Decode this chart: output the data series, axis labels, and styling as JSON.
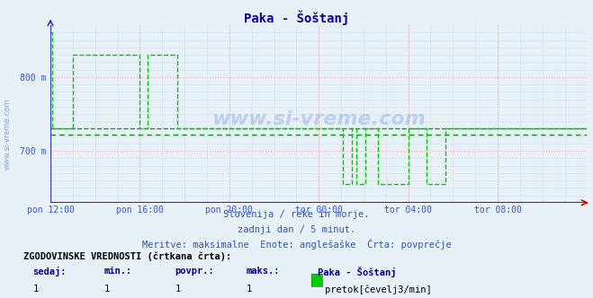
{
  "title": "Paka - Šoštanj",
  "bg_color": "#e8f0f8",
  "plot_bg_color": "#e8f0f8",
  "line_color": "#00cc00",
  "grid_color_major": "#ffaaaa",
  "grid_color_minor": "#ccddee",
  "axis_color_x": "#cc0000",
  "axis_color_y": "#3333cc",
  "ylim": [
    630,
    870
  ],
  "ytick_vals": [
    700,
    800
  ],
  "ytick_labels": [
    "700 m",
    "800 m"
  ],
  "xtick_labels": [
    "pon 12:00",
    "pon 16:00",
    "pon 20:00",
    "tor 00:00",
    "tor 04:00",
    "tor 08:00"
  ],
  "xtick_positions": [
    0,
    48,
    96,
    144,
    192,
    240
  ],
  "total_points": 289,
  "avg_line1": 731,
  "avg_line2": 722,
  "subtitle1": "Slovenija / reke in morje.",
  "subtitle2": "zadnji dan / 5 minut.",
  "subtitle3": "Meritve: maksimalne  Enote: anglešaške  Črta: povprečje",
  "footer_bold": "ZGODOVINSKE VREDNOSTI (črtkana črta):",
  "footer_col1": "sedaj:",
  "footer_col2": "min.:",
  "footer_col3": "povpr.:",
  "footer_col4": "maks.:",
  "footer_series": "Paka - Šoštanj",
  "footer_unit": "pretok[čevelj3/min]",
  "footer_val1": "1",
  "footer_val2": "1",
  "footer_val3": "1",
  "footer_val4": "1",
  "watermark": "www.si-vreme.com",
  "watermark_side": "www.si-vreme.com",
  "signal": [
    860,
    730,
    730,
    730,
    730,
    730,
    730,
    730,
    730,
    730,
    730,
    730,
    830,
    830,
    830,
    830,
    830,
    830,
    830,
    830,
    830,
    830,
    830,
    830,
    830,
    830,
    830,
    830,
    830,
    830,
    830,
    830,
    830,
    830,
    830,
    830,
    830,
    830,
    830,
    830,
    830,
    830,
    830,
    830,
    830,
    830,
    830,
    830,
    730,
    730,
    730,
    730,
    830,
    830,
    830,
    830,
    830,
    830,
    830,
    830,
    830,
    830,
    830,
    830,
    830,
    830,
    830,
    830,
    730,
    730,
    730,
    730,
    730,
    730,
    730,
    730,
    730,
    730,
    730,
    730,
    730,
    730,
    730,
    730,
    730,
    730,
    730,
    730,
    730,
    730,
    730,
    730,
    730,
    730,
    730,
    730,
    730,
    730,
    730,
    730,
    730,
    730,
    730,
    730,
    730,
    730,
    730,
    730,
    730,
    730,
    730,
    730,
    730,
    730,
    730,
    730,
    730,
    730,
    730,
    730,
    730,
    730,
    730,
    730,
    730,
    730,
    730,
    730,
    730,
    730,
    730,
    730,
    730,
    730,
    730,
    730,
    730,
    730,
    730,
    730,
    730,
    730,
    730,
    730,
    730,
    730,
    730,
    730,
    730,
    730,
    730,
    730,
    730,
    730,
    730,
    730,
    730,
    655,
    655,
    655,
    655,
    655,
    730,
    730,
    655,
    655,
    655,
    655,
    655,
    730,
    730,
    730,
    730,
    730,
    730,
    730,
    655,
    655,
    655,
    655,
    655,
    655,
    655,
    655,
    655,
    655,
    655,
    655,
    655,
    655,
    655,
    655,
    730,
    730,
    730,
    730,
    730,
    730,
    730,
    730,
    730,
    730,
    655,
    655,
    655,
    655,
    655,
    655,
    655,
    655,
    655,
    655,
    730,
    730,
    730,
    730,
    730,
    730,
    730,
    730,
    730,
    730,
    730,
    730,
    730,
    730,
    730,
    730,
    730,
    730,
    730,
    730,
    730,
    730,
    730,
    730,
    730,
    730,
    730,
    730,
    730,
    730,
    730,
    730,
    730,
    730,
    730,
    730,
    730,
    730,
    730,
    730,
    730,
    730,
    730,
    730,
    730,
    730,
    730,
    730,
    730,
    730,
    730,
    730,
    730,
    730,
    730,
    730,
    730,
    730,
    730,
    730,
    730,
    730,
    730,
    730,
    730,
    730,
    730,
    730,
    730,
    730,
    730,
    730,
    730,
    730,
    730,
    730,
    730
  ]
}
